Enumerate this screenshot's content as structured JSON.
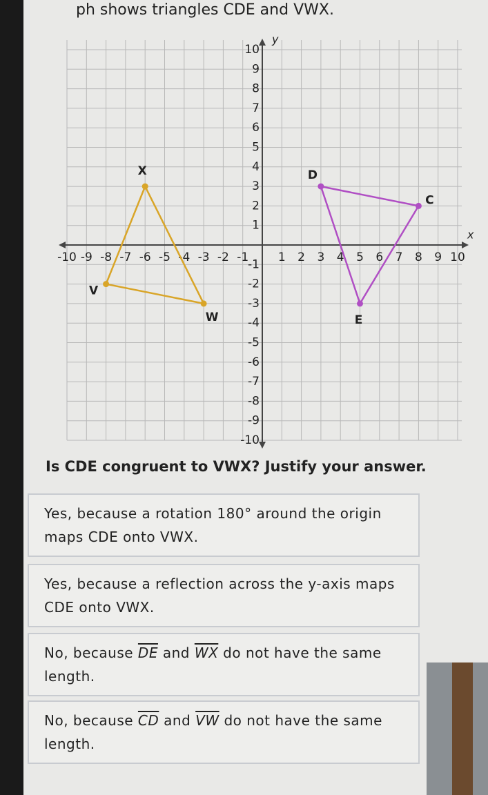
{
  "header": "ph shows triangles CDE and VWX.",
  "graph": {
    "xlim": [
      -10,
      10
    ],
    "ylim": [
      -10,
      10
    ],
    "xticks": [
      -10,
      -9,
      -8,
      -7,
      -6,
      -5,
      -4,
      -3,
      -2,
      -1,
      1,
      2,
      3,
      4,
      5,
      6,
      7,
      8,
      9,
      10
    ],
    "yticks": [
      -10,
      -9,
      -8,
      -7,
      -6,
      -5,
      -4,
      -3,
      -2,
      -1,
      1,
      2,
      3,
      4,
      5,
      6,
      7,
      8,
      9,
      10
    ],
    "xlabel": "x",
    "ylabel": "y",
    "triangles": [
      {
        "color": "#b04fc4",
        "vertices": [
          {
            "label": "D",
            "x": 3,
            "y": 3
          },
          {
            "label": "C",
            "x": 8,
            "y": 2
          },
          {
            "label": "E",
            "x": 5,
            "y": -3
          }
        ]
      },
      {
        "color": "#d9a528",
        "vertices": [
          {
            "label": "X",
            "x": -6,
            "y": 3
          },
          {
            "label": "V",
            "x": -8,
            "y": -2
          },
          {
            "label": "W",
            "x": -3,
            "y": -3
          }
        ]
      }
    ]
  },
  "question": "Is CDE congruent to VWX? Justify your answer.",
  "options": [
    [
      {
        "text": "Yes, because a rotation 180° around the origin maps CDE onto VWX."
      }
    ],
    [
      {
        "text": "Yes, because a reflection across the y-axis maps CDE onto VWX."
      }
    ],
    [
      {
        "text": "No, because "
      },
      {
        "text": "DE",
        "segment": true
      },
      {
        "text": " and "
      },
      {
        "text": "WX",
        "segment": true
      },
      {
        "text": " do not have the same length."
      }
    ],
    [
      {
        "text": "No, because "
      },
      {
        "text": "CD",
        "segment": true
      },
      {
        "text": " and "
      },
      {
        "text": "VW",
        "segment": true
      },
      {
        "text": " do not have the same length."
      }
    ]
  ]
}
